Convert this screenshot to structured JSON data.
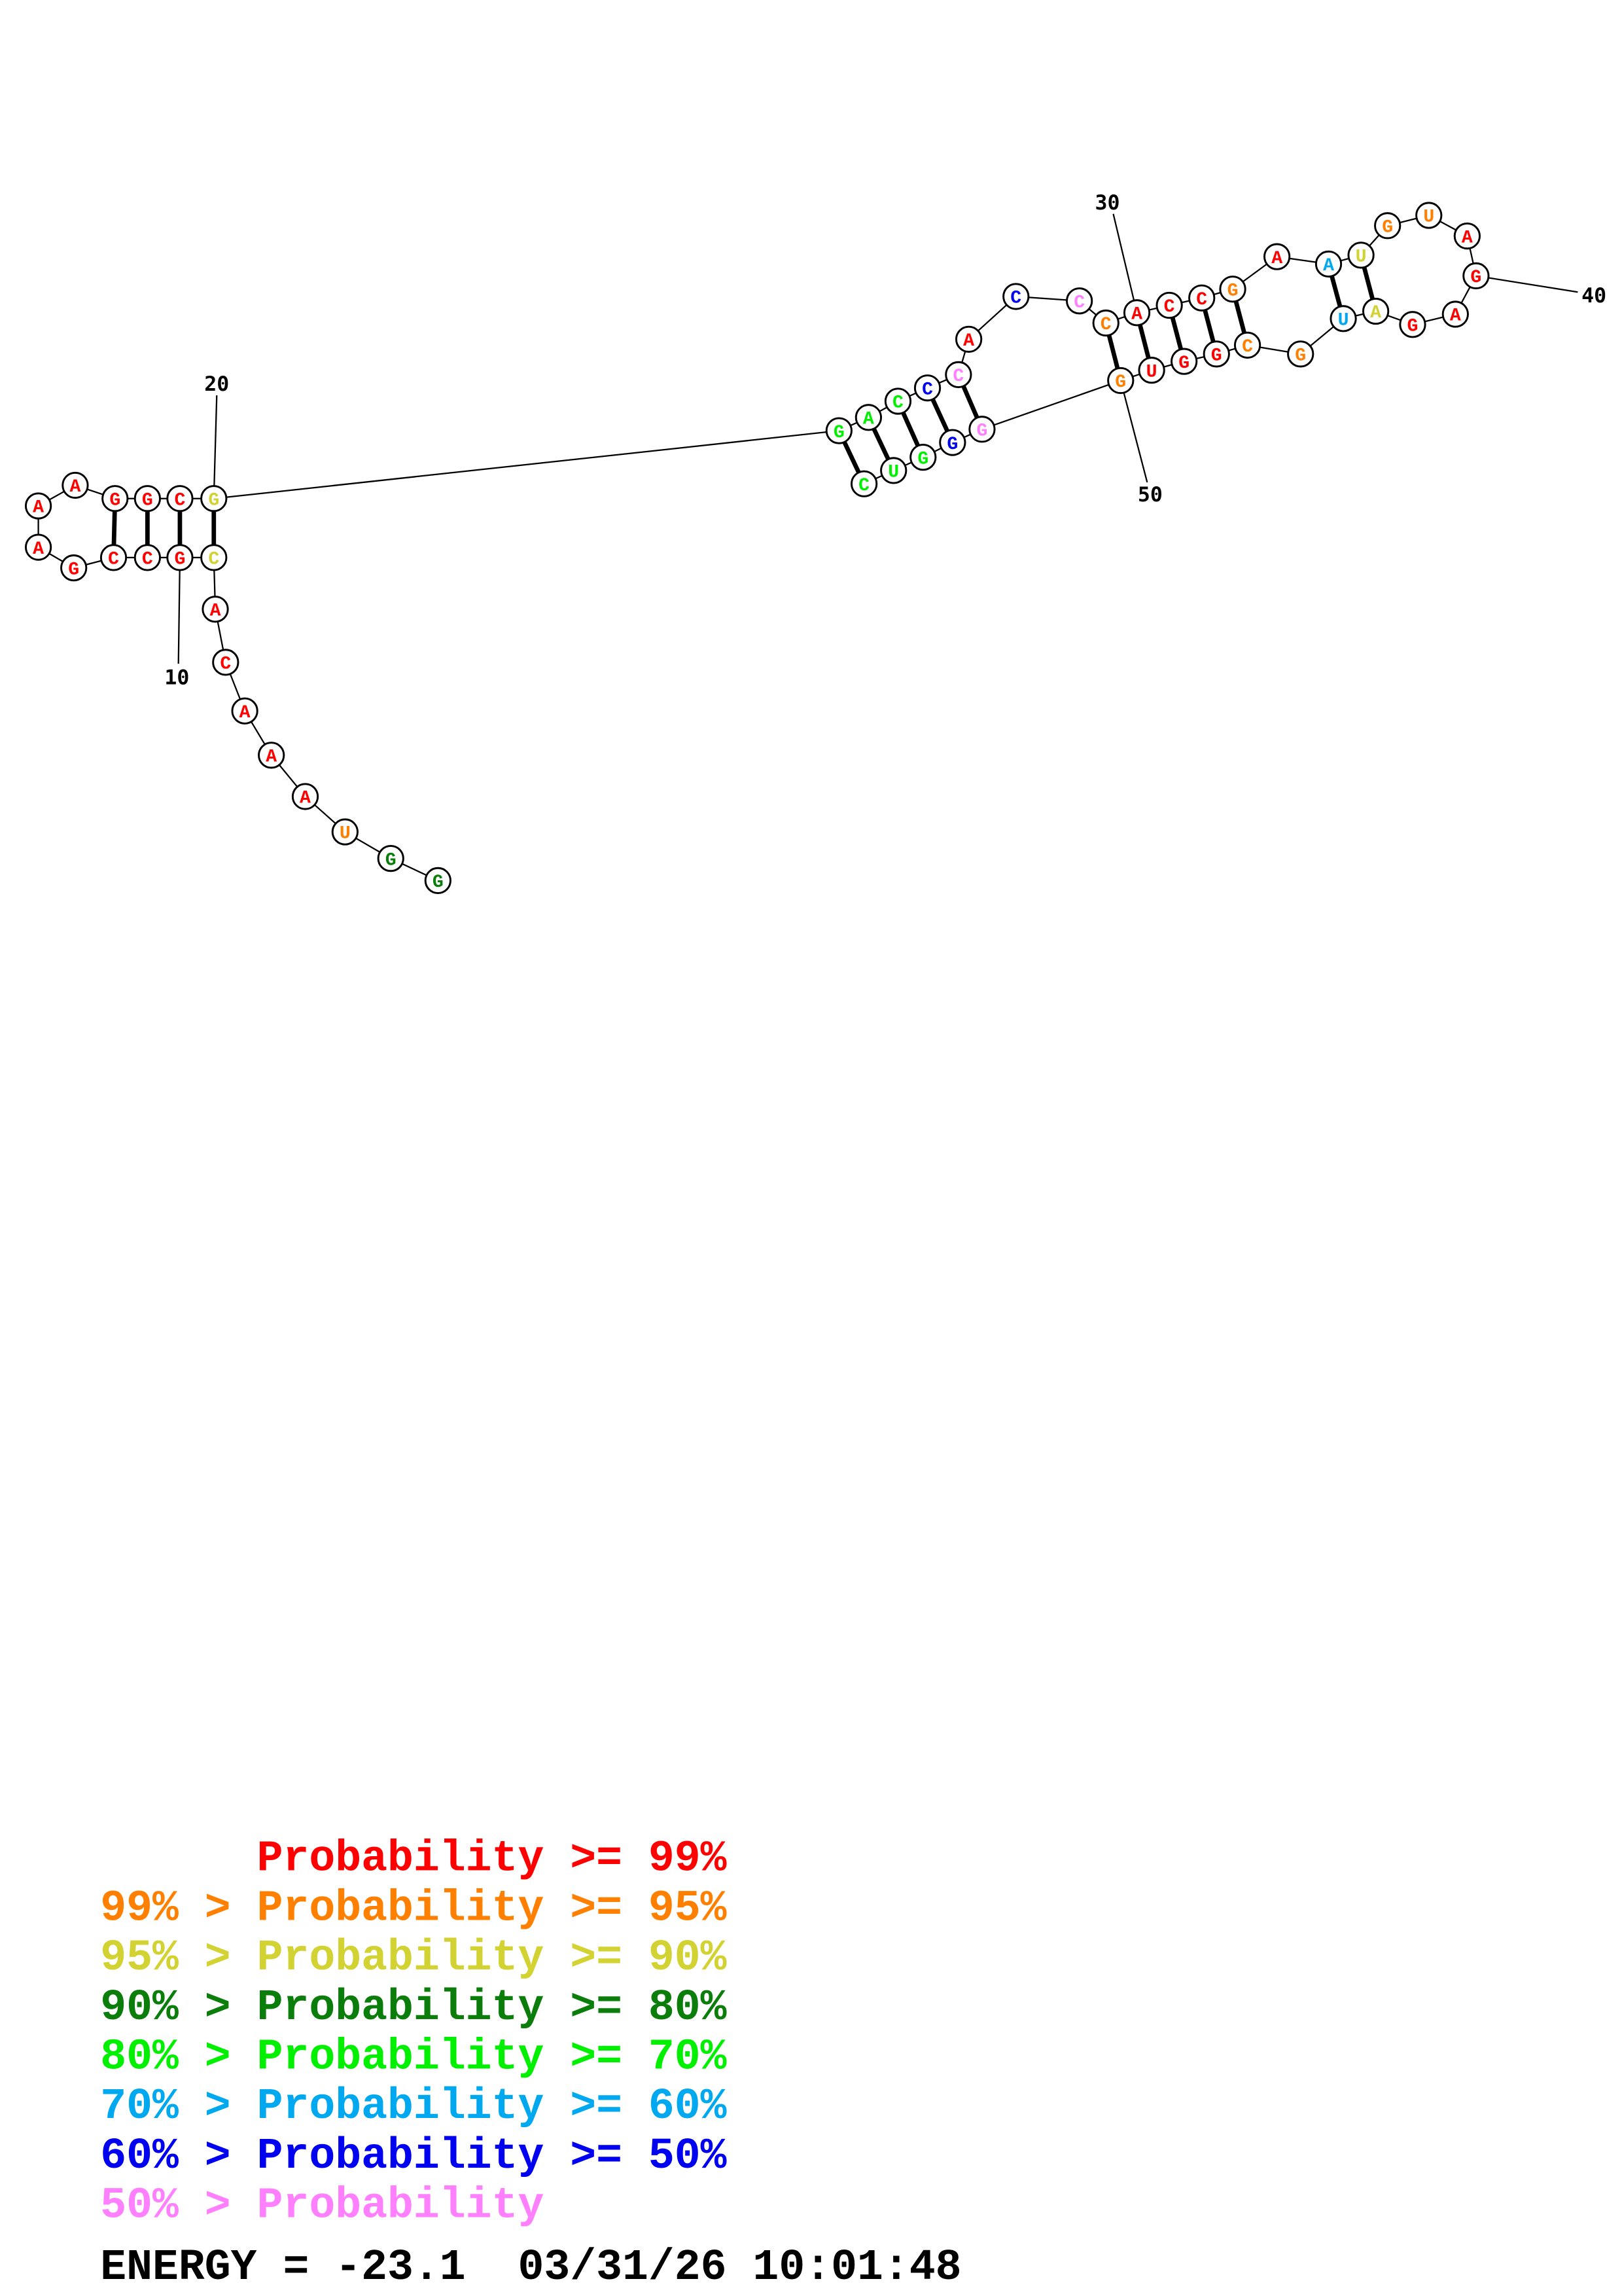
{
  "colors": [
    "#ff0000",
    "#ff8000",
    "#d2d232",
    "#0a7d0a",
    "#00f000",
    "#00a8f0",
    "#0000f0",
    "#ff80ff"
  ],
  "structure": {
    "sequence": [
      "G",
      "G",
      "U",
      "A",
      "A",
      "A",
      "C",
      "A",
      "C",
      "G",
      "C",
      "C",
      "G",
      "A",
      "A",
      "A",
      "G",
      "G",
      "C",
      "G",
      "G",
      "A",
      "C",
      "C",
      "C",
      "A",
      "C",
      "C",
      "C",
      "A",
      "C",
      "C",
      "G",
      "A",
      "A",
      "U",
      "G",
      "U",
      "A",
      "G",
      "A",
      "G",
      "A",
      "U",
      "G",
      "C",
      "G",
      "G",
      "U",
      "G",
      "G",
      "G",
      "G",
      "U",
      "C"
    ],
    "probability_class": [
      3,
      3,
      1,
      0,
      0,
      0,
      0,
      0,
      2,
      0,
      0,
      0,
      0,
      0,
      0,
      0,
      0,
      0,
      0,
      2,
      4,
      4,
      4,
      6,
      7,
      0,
      6,
      7,
      1,
      0,
      0,
      0,
      1,
      0,
      5,
      2,
      1,
      1,
      0,
      0,
      0,
      0,
      2,
      5,
      1,
      1,
      0,
      0,
      0,
      1,
      7,
      6,
      4,
      4,
      4
    ],
    "pairs": [
      [
        9,
        20
      ],
      [
        10,
        19
      ],
      [
        11,
        18
      ],
      [
        12,
        17
      ],
      [
        21,
        55
      ],
      [
        22,
        54
      ],
      [
        23,
        53
      ],
      [
        24,
        52
      ],
      [
        25,
        51
      ],
      [
        29,
        50
      ],
      [
        30,
        49
      ],
      [
        31,
        48
      ],
      [
        32,
        47
      ],
      [
        33,
        46
      ],
      [
        35,
        44
      ],
      [
        36,
        43
      ]
    ],
    "number_labels": [
      "10",
      "20",
      "30",
      "40",
      "50"
    ]
  },
  "legend": [
    {
      "text": "      Probability >= 99%",
      "class": 0
    },
    {
      "text": "99% > Probability >= 95%",
      "class": 1
    },
    {
      "text": "95% > Probability >= 90%",
      "class": 2
    },
    {
      "text": "90% > Probability >= 80%",
      "class": 3
    },
    {
      "text": "80% > Probability >= 70%",
      "class": 4
    },
    {
      "text": "70% > Probability >= 60%",
      "class": 5
    },
    {
      "text": "60% > Probability >= 50%",
      "class": 6
    },
    {
      "text": "50% > Probability",
      "class": 7
    }
  ],
  "footer": {
    "energy": "ENERGY = -23.1  03/31/26 10:01:48"
  }
}
